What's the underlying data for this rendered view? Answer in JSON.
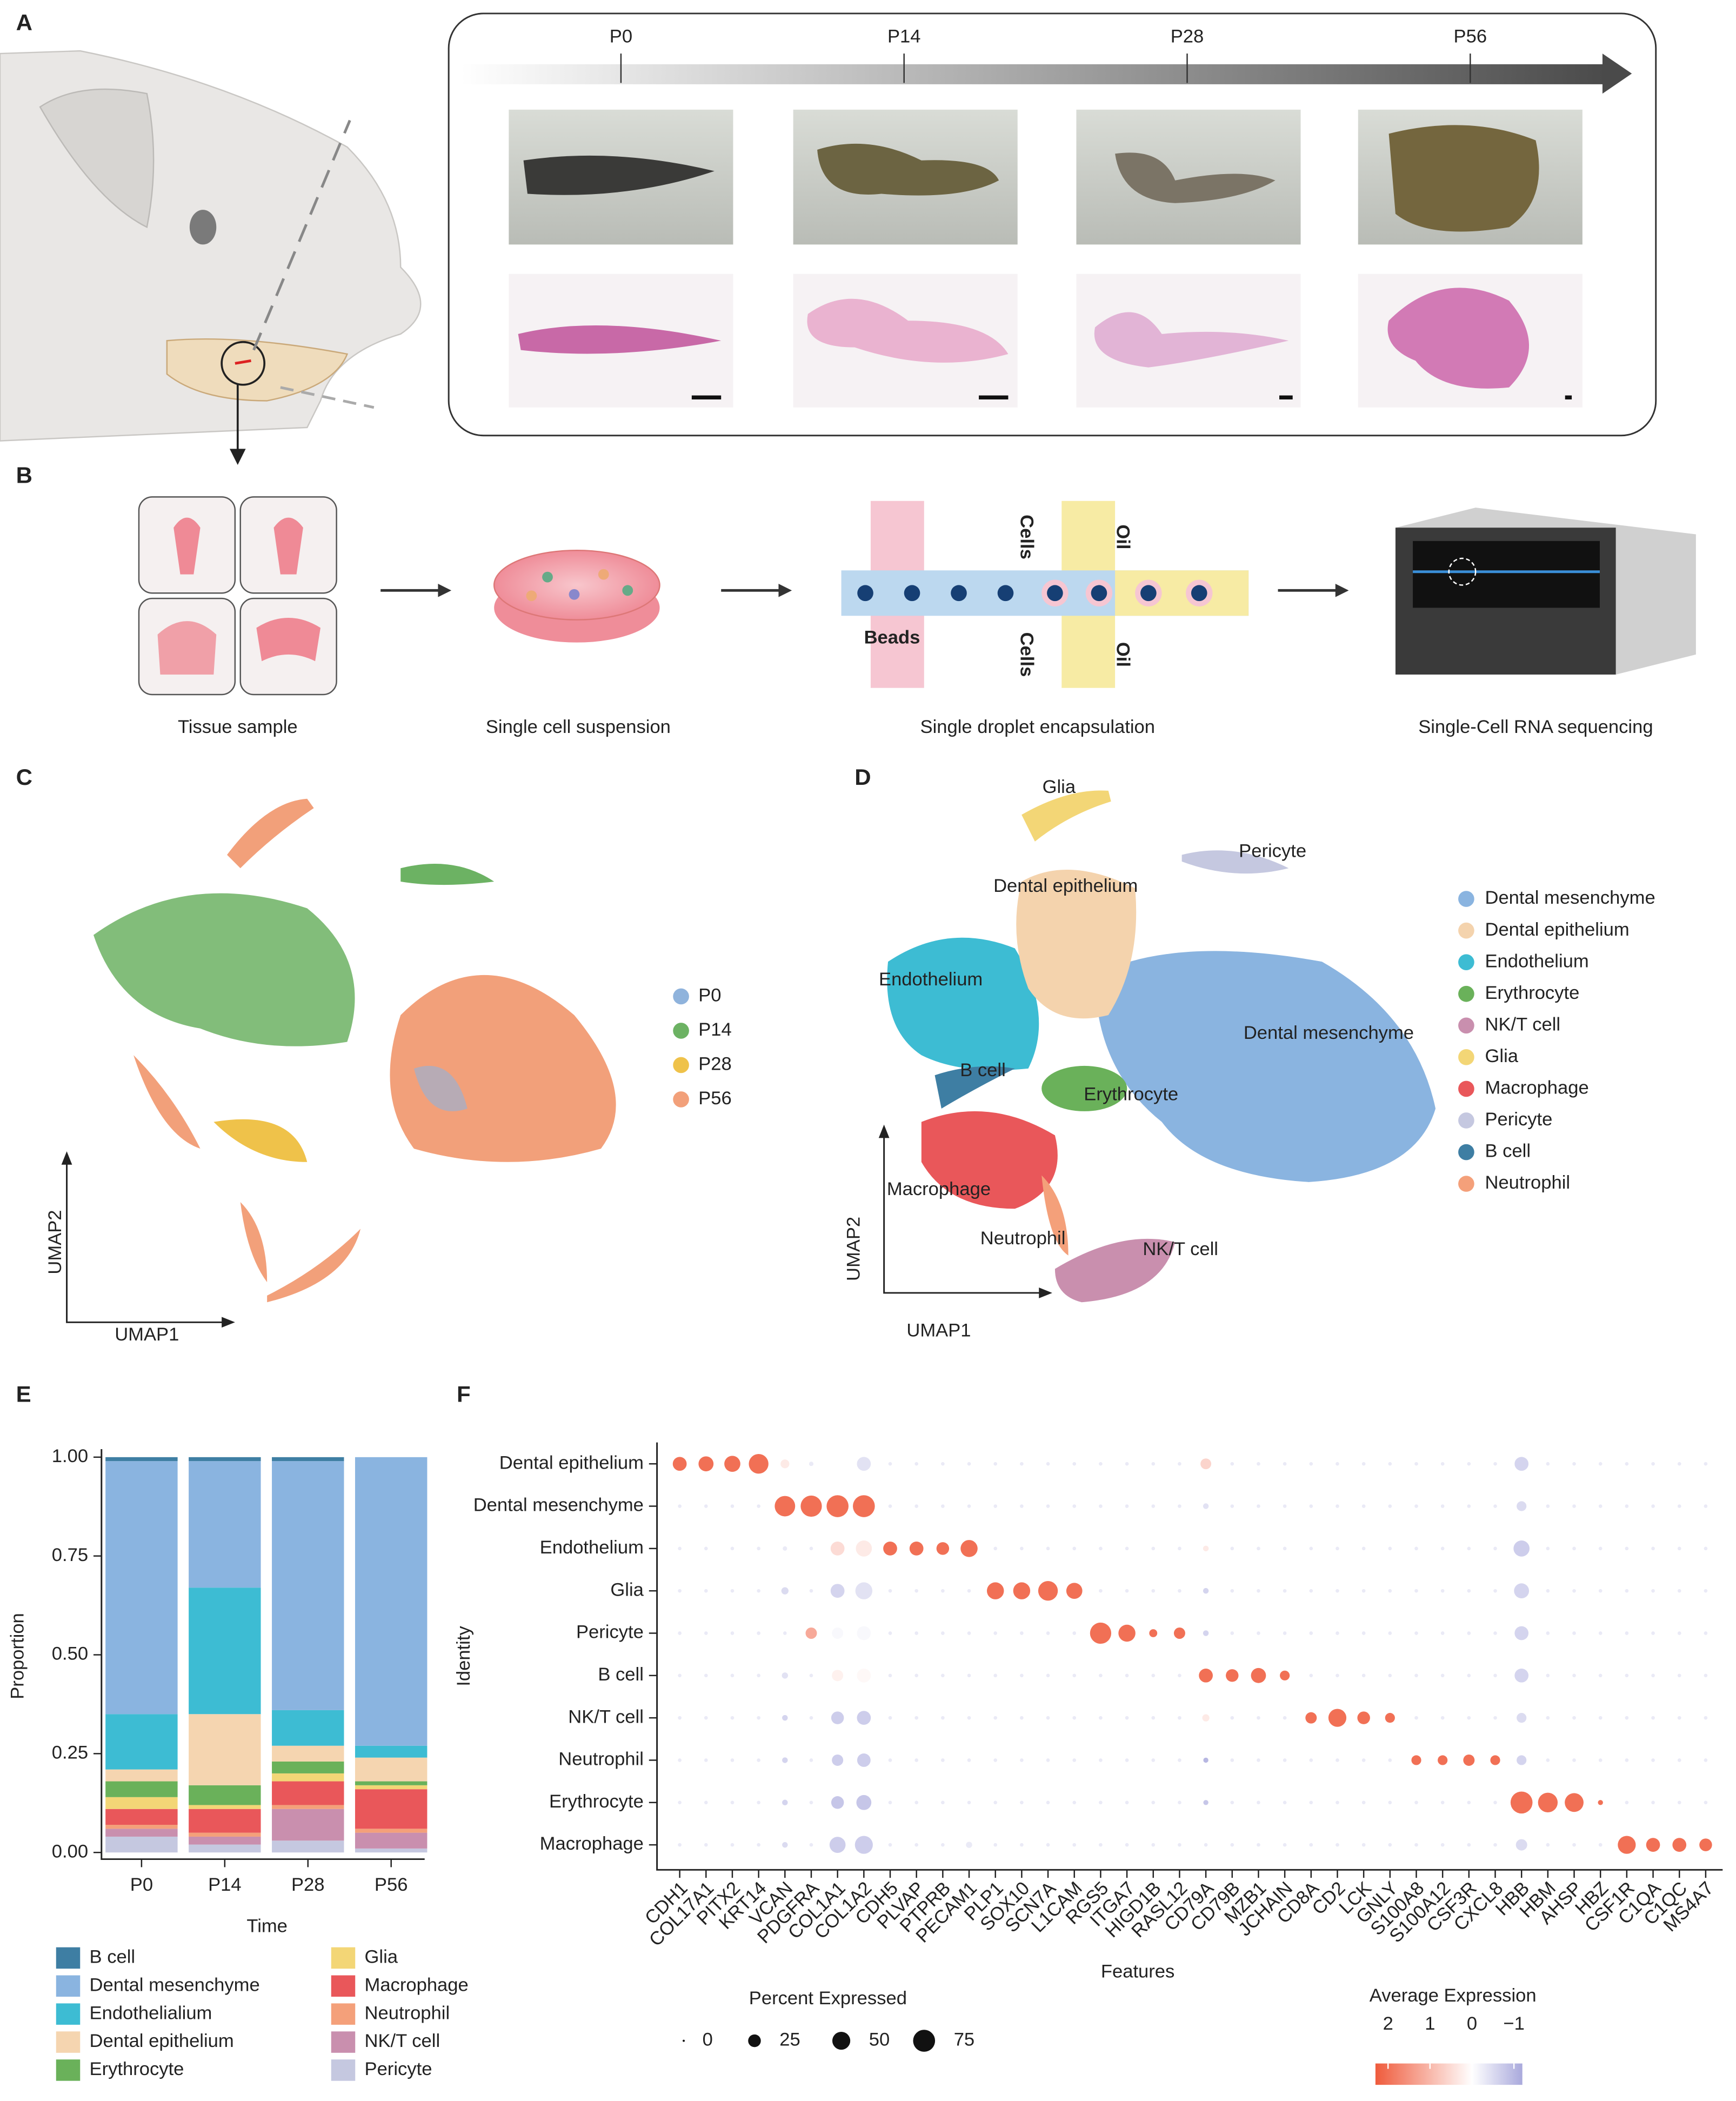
{
  "panels": {
    "A": {
      "label": "A",
      "timepoints": [
        "P0",
        "P14",
        "P28",
        "P56"
      ]
    },
    "B": {
      "label": "B",
      "steps": [
        "Tissue sample",
        "Single cell suspension",
        "Single droplet encapsulation",
        "Single-Cell RNA sequencing"
      ],
      "chip_labels": [
        "Cells",
        "Oil",
        "Beads",
        "Cells",
        "Oil"
      ]
    },
    "C": {
      "label": "C",
      "legend": [
        {
          "name": "P0",
          "color": "#8fb3dc"
        },
        {
          "name": "P14",
          "color": "#6cb263"
        },
        {
          "name": "P28",
          "color": "#efc24a"
        },
        {
          "name": "P56",
          "color": "#f2a07a"
        }
      ],
      "x_label": "UMAP1",
      "y_label": "UMAP2"
    },
    "D": {
      "label": "D",
      "legend": [
        {
          "name": "Dental mesenchyme",
          "color": "#8ab4e0"
        },
        {
          "name": "Dental epithelium",
          "color": "#f4d3ad"
        },
        {
          "name": "Endothelium",
          "color": "#3dbcd3"
        },
        {
          "name": "Erythrocyte",
          "color": "#6ab15a"
        },
        {
          "name": "NK/T cell",
          "color": "#c98fae"
        },
        {
          "name": "Glia",
          "color": "#f3d676"
        },
        {
          "name": "Macrophage",
          "color": "#e9575a"
        },
        {
          "name": "Pericyte",
          "color": "#c5c8e0"
        },
        {
          "name": "B cell",
          "color": "#3e7ea3"
        },
        {
          "name": "Neutrophil",
          "color": "#f4a07a"
        }
      ],
      "cluster_labels": [
        "Glia",
        "Pericyte",
        "Dental epithelium",
        "Endothelium",
        "Dental mesenchyme",
        "B cell",
        "Erythrocyte",
        "Macrophage",
        "Neutrophil",
        "NK/T cell"
      ],
      "x_label": "UMAP1",
      "y_label": "UMAP2"
    }
  },
  "chart_data": [
    {
      "panel_label": "E",
      "type": "stacked_bar",
      "categories": [
        "P0",
        "P14",
        "P28",
        "P56"
      ],
      "series": [
        {
          "name": "B cell",
          "color": "#3e7ea3",
          "values": [
            0.01,
            0.01,
            0.01,
            0
          ]
        },
        {
          "name": "Dental mesenchyme",
          "color": "#8ab4e0",
          "values": [
            0.64,
            0.32,
            0.63,
            0.73
          ]
        },
        {
          "name": "Endothelialium",
          "color": "#3dbcd3",
          "values": [
            0.14,
            0.32,
            0.09,
            0.03
          ]
        },
        {
          "name": "Dental epithelium",
          "color": "#f5d5b0",
          "values": [
            0.03,
            0.18,
            0.04,
            0.06
          ]
        },
        {
          "name": "Erythrocyte",
          "color": "#6ab15a",
          "values": [
            0.04,
            0.05,
            0.03,
            0.01
          ]
        },
        {
          "name": "Glia",
          "color": "#f3d676",
          "values": [
            0.03,
            0.01,
            0.02,
            0.01
          ]
        },
        {
          "name": "Macrophage",
          "color": "#e9575a",
          "values": [
            0.04,
            0.06,
            0.06,
            0.1
          ]
        },
        {
          "name": "Neutrophil",
          "color": "#f4a07a",
          "values": [
            0.01,
            0.01,
            0.01,
            0.01
          ]
        },
        {
          "name": "NK/T cell",
          "color": "#c98fae",
          "values": [
            0.02,
            0.02,
            0.08,
            0.04
          ]
        },
        {
          "name": "Pericyte",
          "color": "#c5c8e0",
          "values": [
            0.04,
            0.02,
            0.03,
            0.01
          ]
        }
      ],
      "ylim": [
        0,
        1
      ],
      "yticks": [
        {
          "value": 0,
          "label": "0.00"
        },
        {
          "value": 0.25,
          "label": "0.25"
        },
        {
          "value": 0.5,
          "label": "0.50"
        },
        {
          "value": 0.75,
          "label": "0.75"
        },
        {
          "value": 1,
          "label": "1.00"
        }
      ],
      "x_label": "Time",
      "y_label": "Proportion"
    },
    {
      "panel_label": "F",
      "type": "dot",
      "features": [
        "CDH1",
        "COL17A1",
        "PITX2",
        "KRT14",
        "VCAN",
        "PDGFRA",
        "COL1A1",
        "COL1A2",
        "CDH5",
        "PLVAP",
        "PTPRB",
        "PECAM1",
        "PLP1",
        "SOX10",
        "SCN7A",
        "L1CAM",
        "RGS5",
        "ITGA7",
        "HIGD1B",
        "RASL12",
        "CD79A",
        "CD79B",
        "MZB1",
        "JCHAIN",
        "CD8A",
        "CD2",
        "LCK",
        "GNLY",
        "S100A8",
        "S100A12",
        "CSF3R",
        "CXCL8",
        "HBB",
        "HBM",
        "AHSP",
        "HBZ",
        "CSF1R",
        "C1QA",
        "C1QC",
        "MS4A7"
      ],
      "identities": [
        "Dental epithelium",
        "Dental mesenchyme",
        "Endothelium",
        "Glia",
        "Pericyte",
        "B cell",
        "NK/T cell",
        "Neutrophil",
        "Erythrocyte",
        "Macrophage"
      ],
      "percent_expressed": [
        [
          30,
          35,
          40,
          60,
          12,
          3,
          10,
          30,
          2,
          2,
          2,
          2,
          2,
          2,
          2,
          2,
          2,
          2,
          2,
          2,
          18,
          2,
          2,
          2,
          2,
          2,
          2,
          2,
          2,
          2,
          2,
          2,
          30,
          2,
          2,
          2,
          2,
          2,
          2,
          2
        ],
        [
          2,
          2,
          2,
          2,
          65,
          70,
          75,
          75,
          2,
          2,
          2,
          2,
          2,
          2,
          2,
          2,
          2,
          2,
          2,
          2,
          5,
          2,
          2,
          2,
          2,
          2,
          2,
          2,
          2,
          2,
          2,
          2,
          15,
          2,
          2,
          2,
          2,
          2,
          2,
          2
        ],
        [
          2,
          2,
          2,
          2,
          3,
          2,
          30,
          40,
          30,
          30,
          25,
          45,
          2,
          2,
          2,
          2,
          2,
          2,
          2,
          2,
          5,
          2,
          2,
          2,
          2,
          2,
          2,
          2,
          2,
          2,
          2,
          2,
          40,
          2,
          2,
          2,
          2,
          2,
          2,
          2
        ],
        [
          2,
          2,
          2,
          2,
          8,
          2,
          30,
          45,
          2,
          2,
          2,
          2,
          45,
          45,
          60,
          40,
          2,
          2,
          2,
          2,
          5,
          2,
          2,
          2,
          2,
          2,
          2,
          2,
          2,
          2,
          2,
          2,
          35,
          2,
          2,
          2,
          2,
          2,
          2,
          2
        ],
        [
          2,
          2,
          2,
          2,
          2,
          20,
          20,
          30,
          2,
          2,
          2,
          2,
          2,
          2,
          2,
          2,
          70,
          45,
          10,
          20,
          5,
          2,
          2,
          2,
          2,
          2,
          2,
          2,
          2,
          2,
          2,
          2,
          30,
          2,
          2,
          2,
          2,
          2,
          2,
          2
        ],
        [
          2,
          2,
          2,
          2,
          6,
          2,
          20,
          30,
          2,
          2,
          2,
          2,
          2,
          2,
          2,
          2,
          2,
          2,
          2,
          2,
          30,
          25,
          35,
          15,
          2,
          2,
          2,
          2,
          2,
          2,
          2,
          2,
          30,
          2,
          2,
          2,
          2,
          2,
          2,
          2
        ],
        [
          2,
          2,
          2,
          2,
          5,
          2,
          25,
          30,
          2,
          2,
          2,
          2,
          2,
          2,
          2,
          2,
          2,
          2,
          2,
          2,
          8,
          2,
          2,
          2,
          20,
          50,
          25,
          15,
          2,
          2,
          2,
          2,
          15,
          2,
          2,
          2,
          2,
          2,
          2,
          2
        ],
        [
          2,
          2,
          2,
          2,
          5,
          2,
          20,
          28,
          2,
          2,
          2,
          2,
          2,
          2,
          2,
          2,
          2,
          2,
          2,
          2,
          4,
          2,
          2,
          2,
          2,
          2,
          2,
          2,
          15,
          15,
          20,
          15,
          15,
          2,
          2,
          2,
          2,
          2,
          2,
          2
        ],
        [
          2,
          2,
          2,
          2,
          5,
          2,
          25,
          35,
          2,
          2,
          2,
          2,
          2,
          2,
          2,
          2,
          2,
          2,
          2,
          2,
          4,
          2,
          2,
          2,
          2,
          2,
          2,
          2,
          2,
          2,
          2,
          2,
          75,
          60,
          55,
          4,
          2,
          2,
          2,
          2
        ],
        [
          2,
          2,
          2,
          2,
          5,
          2,
          40,
          50,
          2,
          2,
          2,
          6,
          2,
          2,
          2,
          2,
          2,
          2,
          2,
          2,
          2,
          2,
          2,
          2,
          2,
          2,
          2,
          2,
          2,
          2,
          2,
          2,
          20,
          2,
          2,
          2,
          50,
          30,
          30,
          25
        ]
      ],
      "average_expression": [
        [
          2,
          2,
          2,
          2,
          0.3,
          -0.3,
          0,
          -0.4,
          -0.3,
          -0.3,
          -0.3,
          -0.3,
          -0.3,
          -0.3,
          -0.3,
          -0.3,
          -0.3,
          -0.3,
          -0.3,
          -0.3,
          0.6,
          -0.3,
          -0.3,
          -0.3,
          -0.3,
          -0.3,
          -0.3,
          -0.3,
          -0.3,
          -0.3,
          -0.3,
          -0.3,
          -0.6,
          -0.3,
          -0.3,
          -0.3,
          -0.3,
          -0.3,
          -0.3,
          -0.3
        ],
        [
          -0.3,
          -0.3,
          -0.3,
          -0.3,
          2,
          2,
          2,
          2,
          -0.3,
          -0.3,
          -0.3,
          -0.3,
          -0.3,
          -0.3,
          -0.3,
          -0.3,
          -0.3,
          -0.3,
          -0.3,
          -0.3,
          -0.4,
          -0.3,
          -0.3,
          -0.3,
          -0.3,
          -0.3,
          -0.3,
          -0.3,
          -0.3,
          -0.3,
          -0.3,
          -0.3,
          -0.5,
          -0.3,
          -0.3,
          -0.3,
          -0.3,
          -0.3,
          -0.3,
          -0.3
        ],
        [
          -0.3,
          -0.3,
          -0.3,
          -0.3,
          -0.3,
          -0.3,
          0.5,
          0.3,
          2,
          2,
          2,
          2,
          -0.3,
          -0.3,
          -0.3,
          -0.3,
          -0.3,
          -0.3,
          -0.3,
          -0.3,
          0.3,
          -0.3,
          -0.3,
          -0.3,
          -0.3,
          -0.3,
          -0.3,
          -0.3,
          -0.3,
          -0.3,
          -0.3,
          -0.3,
          -0.7,
          -0.3,
          -0.3,
          -0.3,
          -0.3,
          -0.3,
          -0.3,
          -0.3
        ],
        [
          -0.3,
          -0.3,
          -0.3,
          -0.3,
          -0.5,
          -0.3,
          -0.6,
          -0.4,
          -0.3,
          -0.3,
          -0.3,
          -0.3,
          2,
          2,
          2,
          2,
          -0.3,
          -0.3,
          -0.3,
          -0.3,
          -0.6,
          -0.3,
          -0.3,
          -0.3,
          -0.3,
          -0.3,
          -0.3,
          -0.3,
          -0.3,
          -0.3,
          -0.3,
          -0.3,
          -0.6,
          -0.3,
          -0.3,
          -0.3,
          -0.3,
          -0.3,
          -0.3,
          -0.3
        ],
        [
          -0.3,
          -0.3,
          -0.3,
          -0.3,
          -0.3,
          1.2,
          -0.1,
          -0.1,
          -0.3,
          -0.3,
          -0.3,
          -0.3,
          -0.3,
          -0.3,
          -0.3,
          -0.3,
          2,
          2,
          2,
          2,
          -0.6,
          -0.3,
          -0.3,
          -0.3,
          -0.3,
          -0.3,
          -0.3,
          -0.3,
          -0.3,
          -0.3,
          -0.3,
          -0.3,
          -0.6,
          -0.3,
          -0.3,
          -0.3,
          -0.3,
          -0.3,
          -0.3,
          -0.3
        ],
        [
          -0.3,
          -0.3,
          -0.3,
          -0.3,
          -0.4,
          -0.3,
          0.2,
          0.1,
          -0.3,
          -0.3,
          -0.3,
          -0.3,
          -0.3,
          -0.3,
          -0.3,
          -0.3,
          -0.3,
          -0.3,
          -0.3,
          -0.3,
          2,
          2,
          2,
          2,
          -0.3,
          -0.3,
          -0.3,
          -0.3,
          -0.3,
          -0.3,
          -0.3,
          -0.3,
          -0.6,
          -0.3,
          -0.3,
          -0.3,
          -0.3,
          -0.3,
          -0.3,
          -0.3
        ],
        [
          -0.3,
          -0.3,
          -0.3,
          -0.3,
          -0.6,
          -0.3,
          -0.7,
          -0.7,
          -0.3,
          -0.3,
          -0.3,
          -0.3,
          -0.3,
          -0.3,
          -0.3,
          -0.3,
          -0.3,
          -0.3,
          -0.3,
          -0.3,
          0.3,
          -0.3,
          -0.3,
          -0.3,
          2,
          2,
          2,
          2,
          -0.3,
          -0.3,
          -0.3,
          -0.3,
          -0.5,
          -0.3,
          -0.3,
          -0.3,
          -0.3,
          -0.3,
          -0.3,
          -0.3
        ],
        [
          -0.3,
          -0.3,
          -0.3,
          -0.3,
          -0.6,
          -0.3,
          -0.7,
          -0.7,
          -0.3,
          -0.3,
          -0.3,
          -0.3,
          -0.3,
          -0.3,
          -0.3,
          -0.3,
          -0.3,
          -0.3,
          -0.3,
          -0.3,
          -1,
          -0.3,
          -0.3,
          -0.3,
          -0.3,
          -0.3,
          -0.3,
          -0.3,
          2,
          2,
          2,
          2,
          -0.6,
          -0.3,
          -0.3,
          -0.3,
          -0.3,
          -0.3,
          -0.3,
          -0.3
        ],
        [
          -0.3,
          -0.3,
          -0.3,
          -0.3,
          -0.6,
          -0.3,
          -0.8,
          -0.8,
          -0.3,
          -0.3,
          -0.3,
          -0.3,
          -0.3,
          -0.3,
          -0.3,
          -0.3,
          -0.3,
          -0.3,
          -0.3,
          -0.3,
          -0.8,
          -0.3,
          -0.3,
          -0.3,
          -0.3,
          -0.3,
          -0.3,
          -0.3,
          -0.3,
          -0.3,
          -0.3,
          -0.3,
          2,
          2,
          2,
          2,
          -0.3,
          -0.3,
          -0.3,
          -0.3
        ],
        [
          -0.3,
          -0.3,
          -0.3,
          -0.3,
          -0.5,
          -0.3,
          -0.7,
          -0.7,
          -0.3,
          -0.3,
          -0.3,
          -0.3,
          -0.3,
          -0.3,
          -0.3,
          -0.3,
          -0.3,
          -0.3,
          -0.3,
          -0.3,
          -0.3,
          -0.3,
          -0.3,
          -0.3,
          -0.3,
          -0.3,
          -0.3,
          -0.3,
          -0.3,
          -0.3,
          -0.3,
          -0.3,
          -0.5,
          -0.3,
          -0.3,
          -0.3,
          2,
          2,
          2,
          2
        ]
      ],
      "x_label": "Features",
      "y_label": "Identity",
      "size_legend": {
        "title": "Percent Expressed",
        "values": [
          0,
          25,
          50,
          75
        ]
      },
      "color_legend": {
        "title": "Average Expression",
        "ticks": [
          2,
          1,
          0,
          {
            "value": -1,
            "label": "−1"
          }
        ]
      },
      "colors": {
        "high": "#ef5b3c",
        "mid": "#ffffff",
        "low": "#a9a9dc"
      },
      "clim": [
        -1.2,
        2.3
      ]
    }
  ]
}
